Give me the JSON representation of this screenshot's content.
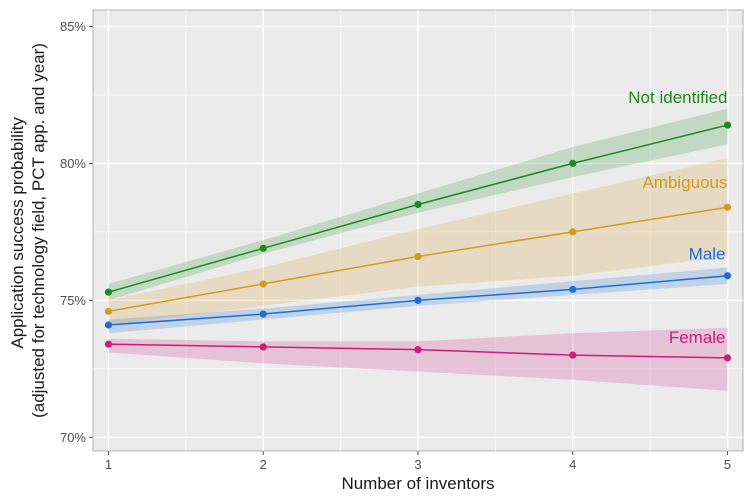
{
  "chart_data": {
    "type": "line",
    "xlabel": "Number of inventors",
    "ylabel_lines": [
      "Application success probability",
      "(adjusted for technology field, PCT app. and year)"
    ],
    "x": [
      1,
      2,
      3,
      4,
      5
    ],
    "xlim": [
      0.9,
      5.1
    ],
    "ylim": [
      69.5,
      85.6
    ],
    "x_ticks": [
      1,
      2,
      3,
      4,
      5
    ],
    "x_tick_labels": [
      "1",
      "2",
      "3",
      "4",
      "5"
    ],
    "y_ticks": [
      70,
      75,
      80,
      85
    ],
    "y_tick_labels": [
      "70%",
      "75%",
      "80%",
      "85%"
    ],
    "grid": true,
    "legend": "direct labels at line ends",
    "series": [
      {
        "name": "Not identified",
        "color": "#1e8a1e",
        "values": [
          75.3,
          76.9,
          78.5,
          80.0,
          81.4
        ],
        "lower": [
          75.0,
          76.7,
          78.2,
          79.5,
          80.7
        ],
        "upper": [
          75.6,
          77.2,
          78.9,
          80.6,
          82.0
        ]
      },
      {
        "name": "Ambiguous",
        "color": "#d39a1c",
        "values": [
          74.6,
          75.6,
          76.6,
          77.5,
          78.4
        ],
        "lower": [
          74.1,
          74.8,
          75.5,
          75.9,
          76.6
        ],
        "upper": [
          75.0,
          76.2,
          77.6,
          78.9,
          80.2
        ]
      },
      {
        "name": "Male",
        "color": "#1f6fd1",
        "values": [
          74.1,
          74.5,
          75.0,
          75.4,
          75.9
        ],
        "lower": [
          73.8,
          74.3,
          74.8,
          75.2,
          75.6
        ],
        "upper": [
          74.3,
          74.7,
          75.2,
          75.7,
          76.2
        ]
      },
      {
        "name": "Female",
        "color": "#cc1d7d",
        "values": [
          73.4,
          73.3,
          73.2,
          73.0,
          72.9
        ],
        "lower": [
          73.1,
          72.7,
          72.4,
          72.1,
          71.7
        ],
        "upper": [
          73.6,
          73.5,
          73.5,
          73.8,
          74.0
        ]
      }
    ]
  }
}
